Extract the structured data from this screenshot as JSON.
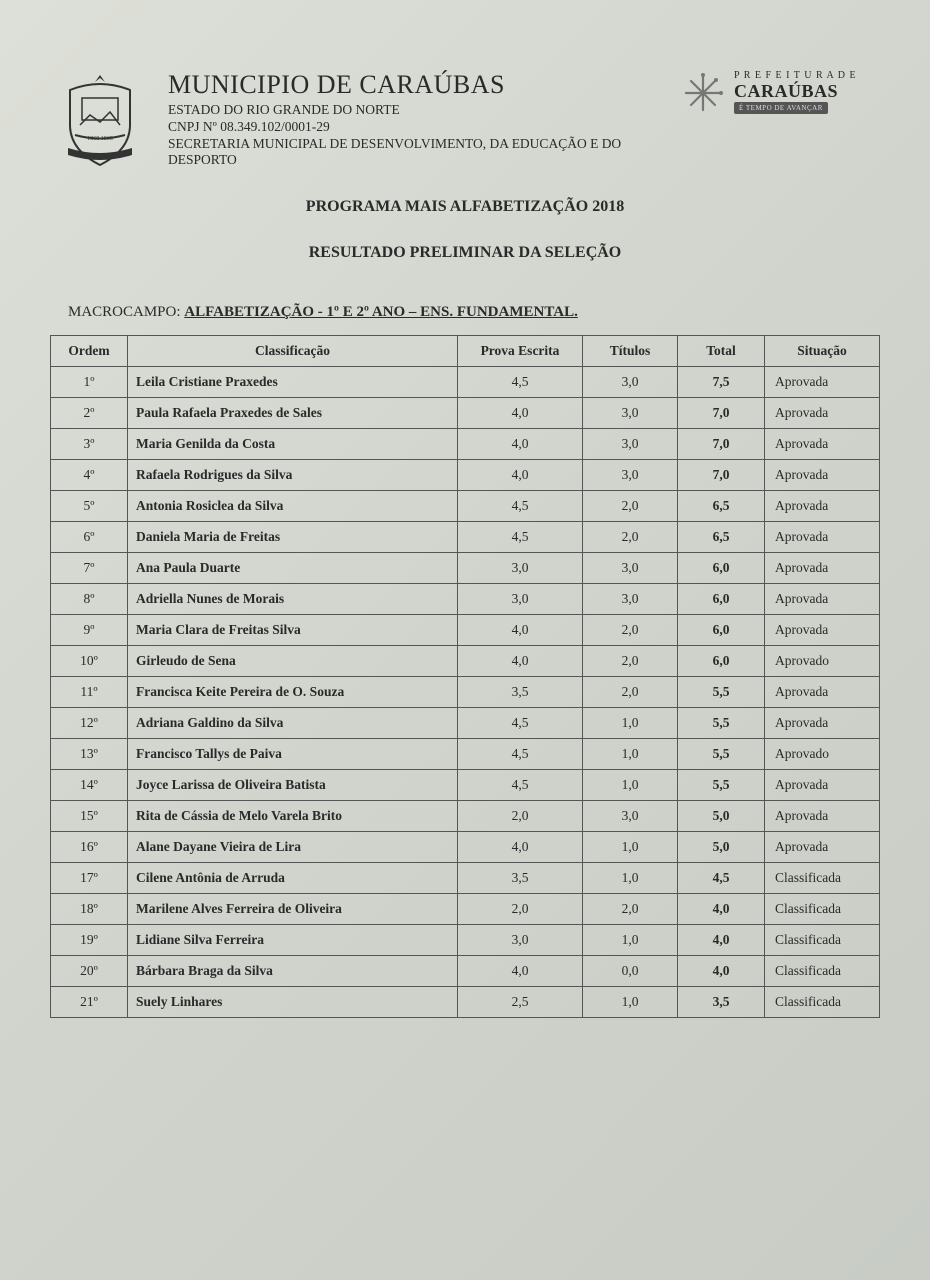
{
  "header": {
    "municipio": "MUNICIPIO DE CARAÚBAS",
    "estado": "ESTADO DO RIO GRANDE DO NORTE",
    "cnpj": "CNPJ Nº 08.349.102/0001-29",
    "secretaria": "SECRETARIA MUNICIPAL DE DESENVOLVIMENTO, DA EDUCAÇÃO E DO DESPORTO",
    "logo_pref_small": "P R E F E I T U R A   D E",
    "logo_brand": "CARAÚBAS",
    "logo_tag": "É TEMPO DE AVANÇAR"
  },
  "titles": {
    "program": "PROGRAMA MAIS ALFABETIZAÇÃO 2018",
    "result": "RESULTADO PRELIMINAR DA SELEÇÃO",
    "macro_label": "MACROCAMPO: ",
    "macro_value": "ALFABETIZAÇÃO - 1º E 2º ANO – ENS. FUNDAMENTAL."
  },
  "table": {
    "columns": [
      "Ordem",
      "Classificação",
      "Prova Escrita",
      "Títulos",
      "Total",
      "Situação"
    ],
    "col_align": [
      "center",
      "left",
      "center",
      "center",
      "center",
      "left"
    ],
    "rows": [
      {
        "ordem": "1º",
        "nome": "Leila Cristiane Praxedes",
        "prova": "4,5",
        "tit": "3,0",
        "total": "7,5",
        "sit": "Aprovada"
      },
      {
        "ordem": "2º",
        "nome": "Paula Rafaela Praxedes de Sales",
        "prova": "4,0",
        "tit": "3,0",
        "total": "7,0",
        "sit": "Aprovada"
      },
      {
        "ordem": "3º",
        "nome": "Maria Genilda da Costa",
        "prova": "4,0",
        "tit": "3,0",
        "total": "7,0",
        "sit": "Aprovada"
      },
      {
        "ordem": "4º",
        "nome": "Rafaela Rodrigues da Silva",
        "prova": "4,0",
        "tit": "3,0",
        "total": "7,0",
        "sit": "Aprovada"
      },
      {
        "ordem": "5º",
        "nome": "Antonia Rosiclea da Silva",
        "prova": "4,5",
        "tit": "2,0",
        "total": "6,5",
        "sit": "Aprovada"
      },
      {
        "ordem": "6º",
        "nome": "Daniela Maria de Freitas",
        "prova": "4,5",
        "tit": "2,0",
        "total": "6,5",
        "sit": "Aprovada"
      },
      {
        "ordem": "7º",
        "nome": "Ana Paula Duarte",
        "prova": "3,0",
        "tit": "3,0",
        "total": "6,0",
        "sit": "Aprovada"
      },
      {
        "ordem": "8º",
        "nome": "Adriella Nunes de Morais",
        "prova": "3,0",
        "tit": "3,0",
        "total": "6,0",
        "sit": "Aprovada"
      },
      {
        "ordem": "9º",
        "nome": "Maria Clara de Freitas Silva",
        "prova": "4,0",
        "tit": "2,0",
        "total": "6,0",
        "sit": "Aprovada"
      },
      {
        "ordem": "10º",
        "nome": "Girleudo de Sena",
        "prova": "4,0",
        "tit": "2,0",
        "total": "6,0",
        "sit": "Aprovado"
      },
      {
        "ordem": "11º",
        "nome": "Francisca Keite Pereira de O. Souza",
        "prova": "3,5",
        "tit": "2,0",
        "total": "5,5",
        "sit": "Aprovada"
      },
      {
        "ordem": "12º",
        "nome": "Adriana Galdino da Silva",
        "prova": "4,5",
        "tit": "1,0",
        "total": "5,5",
        "sit": "Aprovada"
      },
      {
        "ordem": "13º",
        "nome": "Francisco Tallys de Paiva",
        "prova": "4,5",
        "tit": "1,0",
        "total": "5,5",
        "sit": "Aprovado"
      },
      {
        "ordem": "14º",
        "nome": "Joyce Larissa de Oliveira Batista",
        "prova": "4,5",
        "tit": "1,0",
        "total": "5,5",
        "sit": "Aprovada"
      },
      {
        "ordem": "15º",
        "nome": "Rita de Cássia de Melo Varela Brito",
        "prova": "2,0",
        "tit": "3,0",
        "total": "5,0",
        "sit": "Aprovada"
      },
      {
        "ordem": "16º",
        "nome": "Alane Dayane Vieira de Lira",
        "prova": "4,0",
        "tit": "1,0",
        "total": "5,0",
        "sit": "Aprovada"
      },
      {
        "ordem": "17º",
        "nome": "Cilene Antônia de Arruda",
        "prova": "3,5",
        "tit": "1,0",
        "total": "4,5",
        "sit": "Classificada"
      },
      {
        "ordem": "18º",
        "nome": "Marilene Alves Ferreira de Oliveira",
        "prova": "2,0",
        "tit": "2,0",
        "total": "4,0",
        "sit": "Classificada"
      },
      {
        "ordem": "19º",
        "nome": "Lidiane Silva Ferreira",
        "prova": "3,0",
        "tit": "1,0",
        "total": "4,0",
        "sit": "Classificada"
      },
      {
        "ordem": "20º",
        "nome": "Bárbara Braga da Silva",
        "prova": "4,0",
        "tit": "0,0",
        "total": "4,0",
        "sit": "Classificada"
      },
      {
        "ordem": "21º",
        "nome": "Suely Linhares",
        "prova": "2,5",
        "tit": "1,0",
        "total": "3,5",
        "sit": "Classificada"
      }
    ]
  },
  "style": {
    "page_bg": "#d0d4cc",
    "text_color": "#2a2a2a",
    "border_color": "#555555",
    "font_family": "Times New Roman",
    "title_fontsize": 16,
    "body_fontsize": 13.5,
    "header_h1_fontsize": 26
  }
}
